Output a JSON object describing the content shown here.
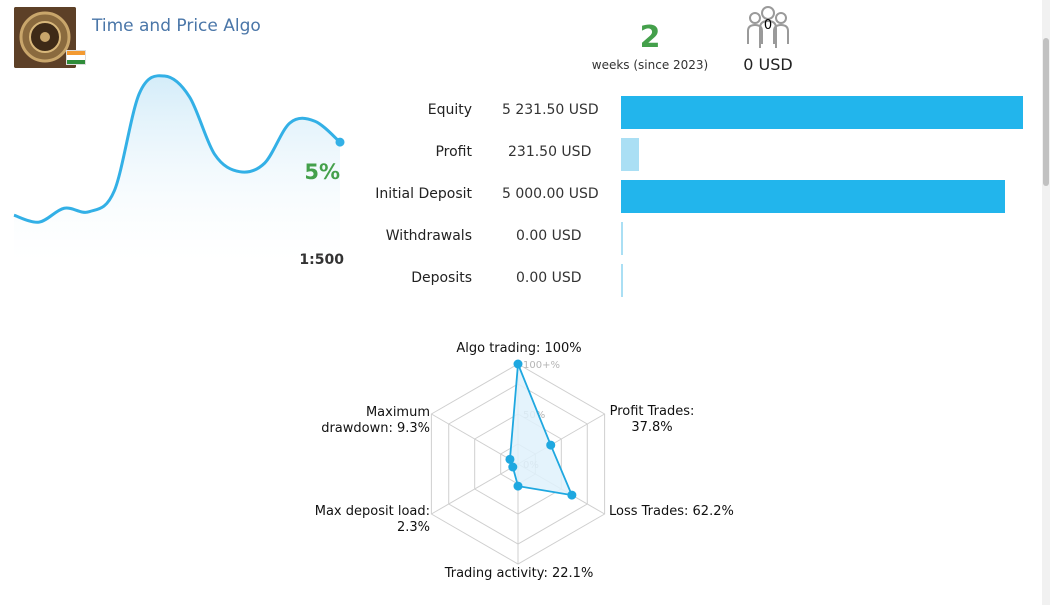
{
  "header": {
    "title": "Time and Price Algo",
    "weeks_value": "2",
    "weeks_label": "weeks (since 2023)",
    "subscribers_count": "0",
    "subscribers_usd": "0 USD"
  },
  "growth": {
    "percent": "5%",
    "leverage": "1:500",
    "line_color": "#33b0e6",
    "shape": [
      0.2,
      0.16,
      0.24,
      0.22,
      0.34,
      0.9,
      1.0,
      0.88,
      0.55,
      0.45,
      0.5,
      0.73,
      0.74,
      0.62
    ]
  },
  "stats": [
    {
      "label": "Equity",
      "value": "5 231.50 USD",
      "fraction": 1.0,
      "color": "#22b5ec"
    },
    {
      "label": "Profit",
      "value": "231.50 USD",
      "fraction": 0.044,
      "color": "#aadff4"
    },
    {
      "label": "Initial Deposit",
      "value": "5 000.00 USD",
      "fraction": 0.956,
      "color": "#22b5ec"
    },
    {
      "label": "Withdrawals",
      "value": "0.00 USD",
      "fraction": 0.0,
      "color": "#aadff4"
    },
    {
      "label": "Deposits",
      "value": "0.00 USD",
      "fraction": 0.0,
      "color": "#aadff4"
    }
  ],
  "radar": {
    "scale_labels": [
      "100+%",
      "50%",
      "0%"
    ],
    "axes": [
      {
        "label": "Algo trading: 100%",
        "value": 100
      },
      {
        "label": "Profit Trades:\n37.8%",
        "value": 37.8
      },
      {
        "label": "Loss Trades: 62.2%",
        "value": 62.2
      },
      {
        "label": "Trading activity: 22.1%",
        "value": 22.1
      },
      {
        "label": "Max deposit load:\n2.3%",
        "value": 2.3
      },
      {
        "label": "Maximum\ndrawdown: 9.3%",
        "value": 9.3
      }
    ],
    "color": "#1fa8e0"
  }
}
